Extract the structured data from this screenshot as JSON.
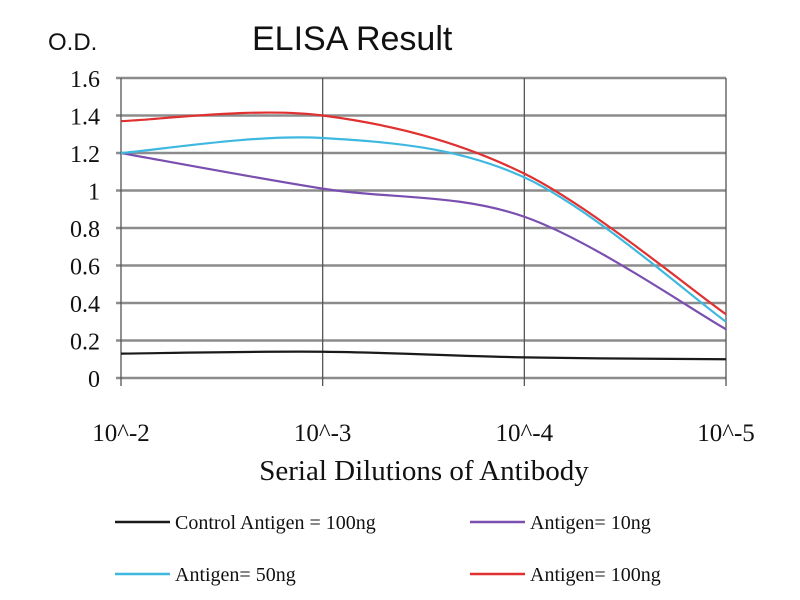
{
  "chart_data": {
    "type": "line",
    "title": "ELISA Result",
    "ylabel": "O.D.",
    "xlabel": "Serial Dilutions of Antibody",
    "categories": [
      "10^-2",
      "10^-3",
      "10^-4",
      "10^-5"
    ],
    "ylim": [
      0,
      1.6
    ],
    "yticks": [
      "0",
      "0.2",
      "0.4",
      "0.6",
      "0.8",
      "1",
      "1.2",
      "1.4",
      "1.6"
    ],
    "ytick_values": [
      0,
      0.2,
      0.4,
      0.6,
      0.8,
      1,
      1.2,
      1.4,
      1.6
    ],
    "grid": true,
    "legend_position": "bottom",
    "series": [
      {
        "name": "Control Antigen = 100ng",
        "color": "#1a1a1a",
        "values": [
          0.13,
          0.14,
          0.11,
          0.1
        ]
      },
      {
        "name": "Antigen= 10ng",
        "color": "#7a4fb0",
        "values": [
          1.2,
          1.01,
          0.86,
          0.26
        ]
      },
      {
        "name": "Antigen= 50ng",
        "color": "#3fb8e0",
        "values": [
          1.2,
          1.28,
          1.07,
          0.3
        ]
      },
      {
        "name": "Antigen= 100ng",
        "color": "#e03030",
        "values": [
          1.37,
          1.4,
          1.09,
          0.34
        ]
      }
    ]
  }
}
